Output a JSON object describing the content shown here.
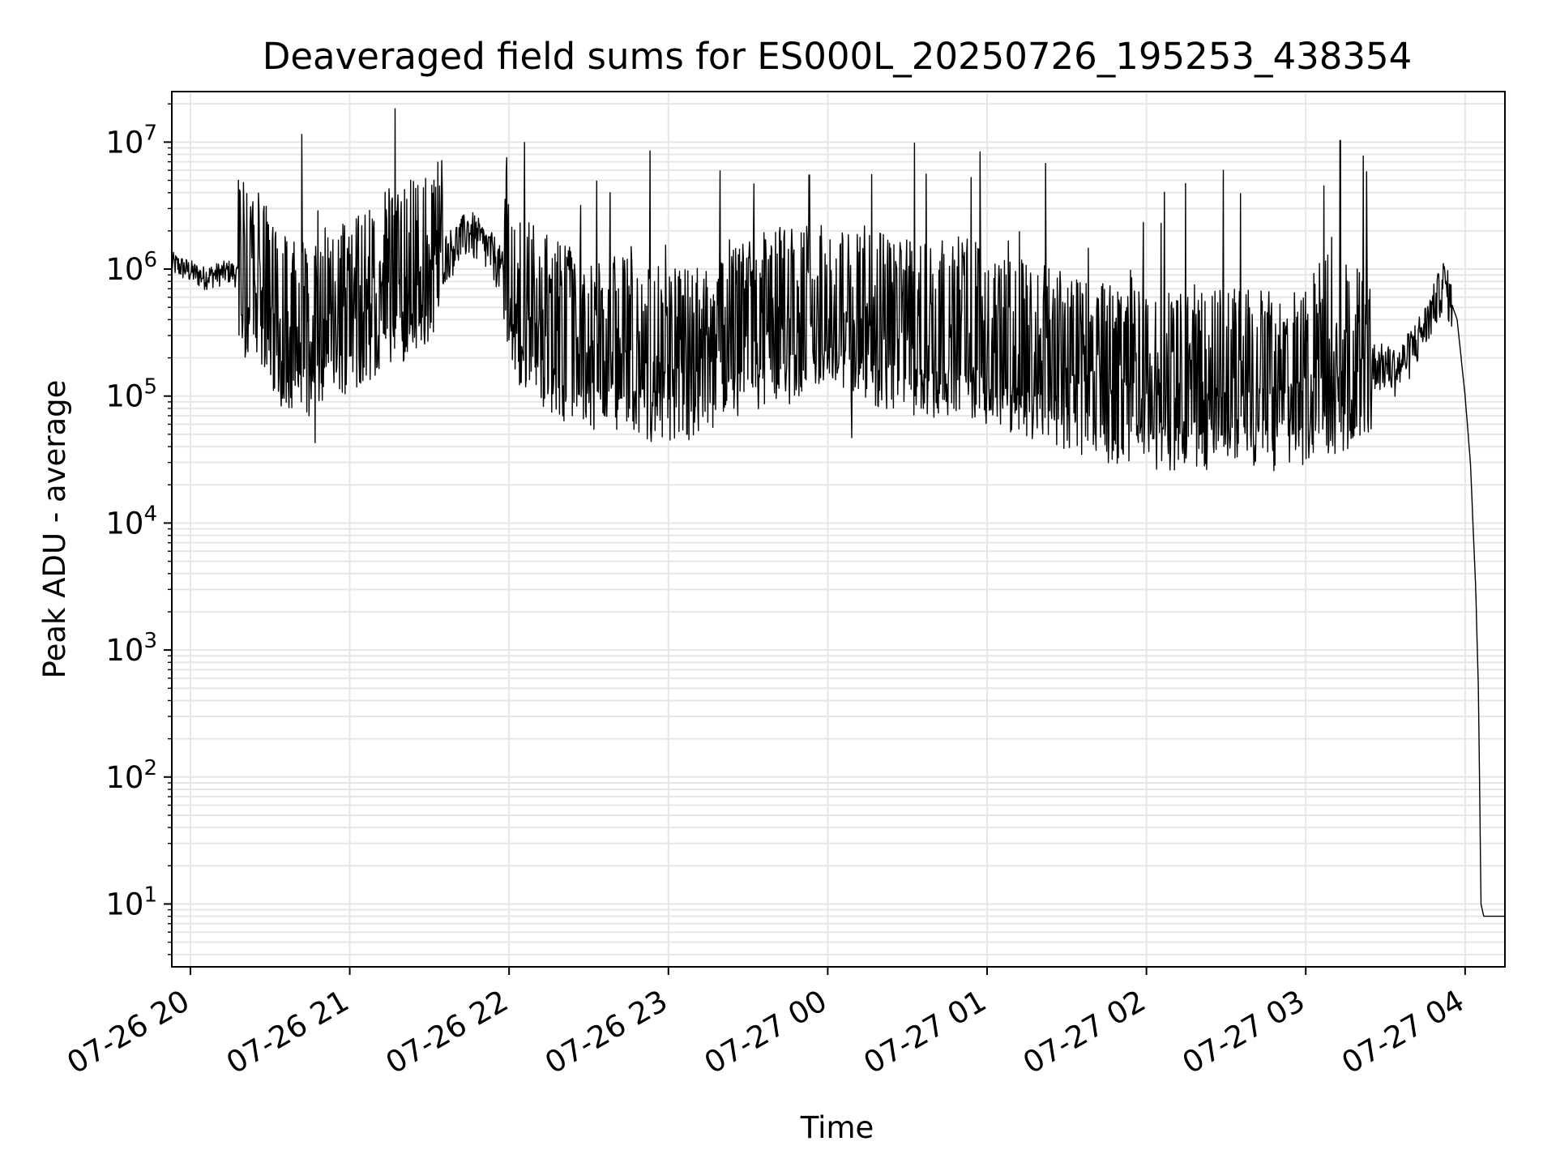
{
  "chart_data": {
    "type": "line",
    "title": "Deaveraged field sums for ES000L_20250726_195253_438354",
    "xlabel": "Time",
    "ylabel": "Peak ADU - average",
    "yscale": "log",
    "ylim": [
      3.2,
      25000000
    ],
    "xlim": [
      "07-26 19:53",
      "07-27 04:15"
    ],
    "grid": true,
    "line_color": "#000000",
    "grid_color": "#e6e6e6",
    "x_ticks": [
      "07-26 20",
      "07-26 21",
      "07-26 22",
      "07-26 23",
      "07-27 00",
      "07-27 01",
      "07-27 02",
      "07-27 03",
      "07-27 04"
    ],
    "y_ticks": [
      {
        "base": "10",
        "exp": "1"
      },
      {
        "base": "10",
        "exp": "2"
      },
      {
        "base": "10",
        "exp": "3"
      },
      {
        "base": "10",
        "exp": "4"
      },
      {
        "base": "10",
        "exp": "5"
      },
      {
        "base": "10",
        "exp": "6"
      },
      {
        "base": "10",
        "exp": "7"
      }
    ],
    "series": [
      {
        "x": [
          "07-26 19:53",
          "07-26 20:05",
          "07-26 20:15",
          "07-26 20:25",
          "07-26 20:35",
          "07-26 20:45",
          "07-26 20:55",
          "07-26 21:05",
          "07-26 21:15",
          "07-26 21:25",
          "07-26 21:35",
          "07-26 21:45",
          "07-26 21:55",
          "07-26 22:05",
          "07-26 22:20",
          "07-26 22:35",
          "07-26 22:50",
          "07-26 23:05",
          "07-26 23:20",
          "07-26 23:35",
          "07-26 23:50",
          "07-27 00:05",
          "07-27 00:20",
          "07-27 00:35",
          "07-27 00:50",
          "07-27 01:05",
          "07-27 01:20",
          "07-27 01:35",
          "07-27 01:50",
          "07-27 02:05",
          "07-27 02:20",
          "07-27 02:35",
          "07-27 02:50",
          "07-27 03:05",
          "07-27 03:15",
          "07-27 03:25",
          "07-27 03:35",
          "07-27 03:45",
          "07-27 03:52",
          "07-27 03:57",
          "07-27 04:00",
          "07-27 04:02",
          "07-27 04:04",
          "07-27 04:05",
          "07-27 04:06",
          "07-27 04:07",
          "07-27 04:10",
          "07-27 04:15"
        ],
        "values": [
          1100000,
          850000,
          950000,
          700000,
          300000,
          250000,
          400000,
          450000,
          700000,
          800000,
          1200000,
          2000000,
          1200000,
          400000,
          250000,
          200000,
          180000,
          150000,
          200000,
          300000,
          350000,
          400000,
          300000,
          250000,
          300000,
          200000,
          180000,
          130000,
          110000,
          100000,
          100000,
          110000,
          100000,
          120000,
          150000,
          180000,
          160000,
          350000,
          800000,
          400000,
          100000,
          30000,
          3000,
          500,
          10,
          8,
          8,
          8
        ]
      }
    ],
    "spikes": [
      {
        "x": "07-26 20:20",
        "value": 4800000
      },
      {
        "x": "07-26 20:42",
        "value": 11500000
      },
      {
        "x": "07-26 20:47",
        "value": 43000
      },
      {
        "x": "07-26 21:23",
        "value": 5000000
      },
      {
        "x": "07-26 21:59",
        "value": 5800000
      },
      {
        "x": "07-26 22:38",
        "value": 4000000
      },
      {
        "x": "07-26 23:07",
        "value": 50000
      },
      {
        "x": "07-26 23:53",
        "value": 5500000
      },
      {
        "x": "07-27 00:09",
        "value": 47000
      },
      {
        "x": "07-27 00:37",
        "value": 5600000
      },
      {
        "x": "07-27 01:48",
        "value": 45000
      },
      {
        "x": "07-27 02:29",
        "value": 6000000
      },
      {
        "x": "07-27 03:01",
        "value": 48000
      },
      {
        "x": "07-27 03:13",
        "value": 10300000
      }
    ]
  }
}
